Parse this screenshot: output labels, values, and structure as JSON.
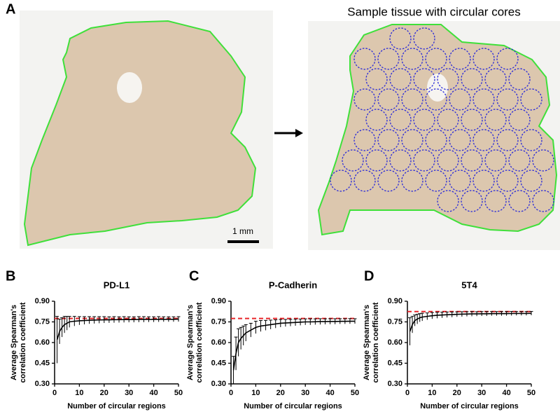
{
  "panels": {
    "a": "A",
    "b": "B",
    "c": "C",
    "d": "D"
  },
  "image_title": "Sample tissue with circular cores",
  "scale_bar": "1 mm",
  "chart_data": [
    {
      "type": "line",
      "title": "PD-L1",
      "ylabel": [
        "Average Spearman's",
        "correlation coefficient"
      ],
      "xlabel": "Number of circular regions",
      "x": [
        1,
        2,
        3,
        4,
        5,
        6,
        8,
        10,
        12,
        14,
        16,
        18,
        20,
        22,
        24,
        26,
        28,
        30,
        32,
        34,
        36,
        38,
        40,
        42,
        44,
        46,
        48,
        50
      ],
      "values": [
        0.62,
        0.68,
        0.71,
        0.73,
        0.74,
        0.75,
        0.755,
        0.758,
        0.76,
        0.762,
        0.763,
        0.764,
        0.765,
        0.765,
        0.766,
        0.766,
        0.767,
        0.767,
        0.767,
        0.768,
        0.768,
        0.768,
        0.768,
        0.769,
        0.769,
        0.769,
        0.769,
        0.77
      ],
      "errors": [
        0.17,
        0.09,
        0.07,
        0.06,
        0.05,
        0.04,
        0.035,
        0.03,
        0.028,
        0.026,
        0.025,
        0.024,
        0.023,
        0.022,
        0.022,
        0.021,
        0.021,
        0.02,
        0.02,
        0.02,
        0.02,
        0.019,
        0.019,
        0.019,
        0.018,
        0.018,
        0.018,
        0.018
      ],
      "color": "#000000",
      "hline": 0.775,
      "hline_color": "#e8262a",
      "xlim": [
        0,
        50
      ],
      "xticks": [
        0,
        10,
        20,
        30,
        40,
        50
      ],
      "ylim": [
        0.3,
        0.9
      ],
      "yticks": [
        {
          "value": 0.3,
          "label": "0.30"
        },
        0.45,
        {
          "value": 0.6,
          "label": "0.60"
        },
        0.75,
        {
          "value": 0.9,
          "label": "0.90"
        }
      ]
    },
    {
      "type": "line",
      "title": "P-Cadherin",
      "ylabel": [
        "Average Spearman's",
        "correlation coefficient"
      ],
      "xlabel": "Number of circular regions",
      "x": [
        1,
        2,
        3,
        4,
        5,
        6,
        8,
        10,
        12,
        14,
        16,
        18,
        20,
        22,
        24,
        26,
        28,
        30,
        32,
        34,
        36,
        38,
        40,
        42,
        44,
        46,
        48,
        50
      ],
      "values": [
        0.4,
        0.52,
        0.6,
        0.63,
        0.65,
        0.67,
        0.69,
        0.71,
        0.72,
        0.725,
        0.73,
        0.735,
        0.74,
        0.742,
        0.744,
        0.746,
        0.748,
        0.75,
        0.75,
        0.751,
        0.752,
        0.752,
        0.753,
        0.753,
        0.754,
        0.754,
        0.755,
        0.755
      ],
      "errors": [
        0.1,
        0.12,
        0.1,
        0.08,
        0.07,
        0.06,
        0.05,
        0.045,
        0.04,
        0.036,
        0.033,
        0.03,
        0.028,
        0.026,
        0.025,
        0.024,
        0.023,
        0.022,
        0.022,
        0.021,
        0.021,
        0.02,
        0.02,
        0.02,
        0.019,
        0.019,
        0.019,
        0.018
      ],
      "color": "#000000",
      "hline": 0.775,
      "hline_color": "#e8262a",
      "xlim": [
        0,
        50
      ],
      "xticks": [
        0,
        10,
        20,
        30,
        40,
        50
      ],
      "ylim": [
        0.3,
        0.9
      ],
      "yticks": [
        {
          "value": 0.3,
          "label": "0.30"
        },
        0.45,
        {
          "value": 0.6,
          "label": "0.60"
        },
        0.75,
        {
          "value": 0.9,
          "label": "0.90"
        }
      ]
    },
    {
      "type": "line",
      "title": "5T4",
      "ylabel": [
        "Average Spearman's",
        "correlation coefficient"
      ],
      "xlabel": "Number of circular regions",
      "x": [
        1,
        2,
        3,
        4,
        5,
        6,
        8,
        10,
        12,
        14,
        16,
        18,
        20,
        22,
        24,
        26,
        28,
        30,
        32,
        34,
        36,
        38,
        40,
        42,
        44,
        46,
        48,
        50
      ],
      "values": [
        0.68,
        0.73,
        0.76,
        0.77,
        0.78,
        0.785,
        0.79,
        0.795,
        0.798,
        0.8,
        0.802,
        0.803,
        0.805,
        0.806,
        0.807,
        0.808,
        0.808,
        0.809,
        0.809,
        0.81,
        0.81,
        0.81,
        0.81,
        0.811,
        0.811,
        0.811,
        0.811,
        0.812
      ],
      "errors": [
        0.1,
        0.06,
        0.04,
        0.035,
        0.03,
        0.028,
        0.025,
        0.023,
        0.022,
        0.021,
        0.02,
        0.019,
        0.018,
        0.018,
        0.017,
        0.017,
        0.016,
        0.016,
        0.016,
        0.015,
        0.015,
        0.015,
        0.015,
        0.015,
        0.014,
        0.014,
        0.014,
        0.014
      ],
      "color": "#000000",
      "hline": 0.825,
      "hline_color": "#e8262a",
      "xlim": [
        0,
        50
      ],
      "xticks": [
        0,
        10,
        20,
        30,
        40,
        50
      ],
      "ylim": [
        0.3,
        0.9
      ],
      "yticks": [
        {
          "value": 0.3,
          "label": "0.30"
        },
        0.45,
        {
          "value": 0.6,
          "label": "0.60"
        },
        0.75,
        {
          "value": 0.9,
          "label": "0.90"
        }
      ]
    }
  ]
}
